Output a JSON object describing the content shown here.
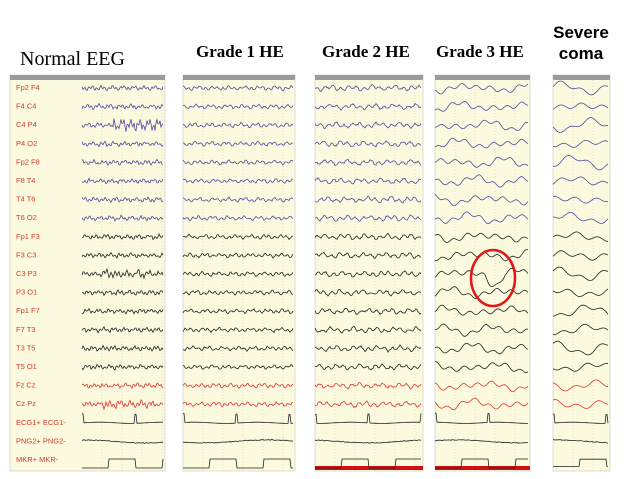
{
  "panels": [
    {
      "title": "Normal EEG"
    },
    {
      "title": "Grade 1 HE"
    },
    {
      "title": "Grade 2 HE"
    },
    {
      "title": "Grade 3 HE"
    },
    {
      "title": "Severe coma"
    }
  ],
  "channels": [
    "Fp2 F4",
    "F4 C4",
    "C4 P4",
    "P4 O2",
    "Fp2 F8",
    "F8 T4",
    "T4 T6",
    "T6 O2",
    "Fp1 F3",
    "F3 C3",
    "C3 P3",
    "P3 O1",
    "Fp1 F7",
    "F7 T3",
    "T3 T5",
    "T5 O1",
    "Fz Cz",
    "Cz Pz",
    "ECG1+ ECG1-",
    "PNG2+ PNG2-",
    "MKR+ MKR-"
  ]
}
